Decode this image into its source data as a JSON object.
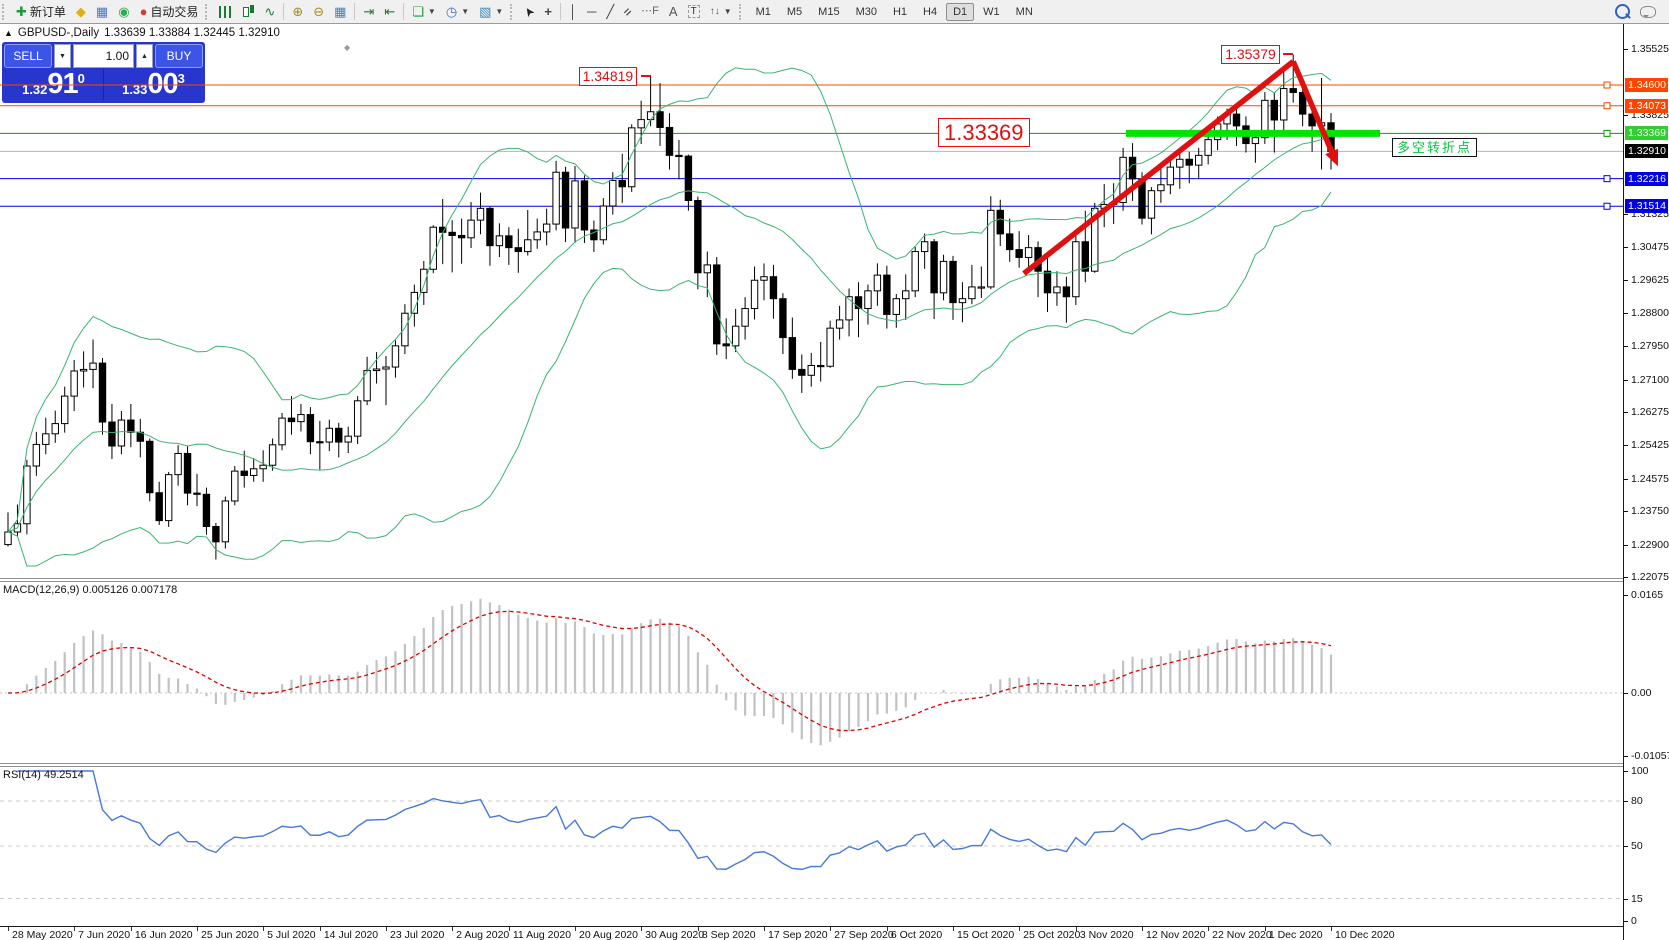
{
  "toolbar": {
    "new_order": "新订单",
    "autotrading": "自动交易",
    "timeframes": [
      "M1",
      "M5",
      "M15",
      "M30",
      "H1",
      "H4",
      "D1",
      "W1",
      "MN"
    ],
    "active_timeframe": "D1"
  },
  "window": {
    "title_symbol": "GBPUSD-,Daily",
    "title_ohlc": "1.33639 1.33884 1.32445 1.32910"
  },
  "trade_panel": {
    "sell_label": "SELL",
    "buy_label": "BUY",
    "volume": "1.00",
    "bid": {
      "prefix": "1.32",
      "big": "91",
      "sup": "0"
    },
    "ask": {
      "prefix": "1.33",
      "big": "00",
      "sup": "3"
    }
  },
  "price_axis": {
    "ticks": [
      "1.35525",
      "1.33825",
      "1.31325",
      "1.30475",
      "1.29625",
      "1.28800",
      "1.27950",
      "1.27100",
      "1.26275",
      "1.25425",
      "1.24575",
      "1.23750",
      "1.22900",
      "1.22075"
    ]
  },
  "levels": [
    {
      "text": "1.34600",
      "value": 1.346,
      "line": "#ff4500",
      "tag_bg": "#ff4500",
      "tag_fg": "#ffffff",
      "marker": true
    },
    {
      "text": "1.34073",
      "value": 1.34073,
      "line": "#ff4500",
      "tag_bg": "#ff4500",
      "tag_fg": "#ffffff",
      "marker": true
    },
    {
      "text": "1.33369",
      "value": 1.33369,
      "line": "#00a000",
      "tag_bg": "#33cc33",
      "tag_fg": "#ffffff",
      "marker": true
    },
    {
      "text": "1.32910",
      "value": 1.3291,
      "line": "#b4b4b4",
      "tag_bg": "#000000",
      "tag_fg": "#ffffff",
      "marker": false
    },
    {
      "text": "1.32216",
      "value": 1.32216,
      "line": "#0000e0",
      "tag_bg": "#0000e0",
      "tag_fg": "#ffffff",
      "marker": true
    },
    {
      "text": "1.31514",
      "value": 1.31514,
      "line": "#0000e0",
      "tag_bg": "#0000e0",
      "tag_fg": "#ffffff",
      "marker": true
    }
  ],
  "annotations": {
    "swing_high_1": {
      "text": "1.34819",
      "bar": 68,
      "price": 1.34819
    },
    "swing_high_2": {
      "text": "1.35379",
      "bar": 136,
      "price": 1.35379
    },
    "key_level_label": {
      "text": "1.33369",
      "price": 1.33369
    },
    "note": {
      "text": "多空转折点",
      "color": "#00c840"
    }
  },
  "macd_panel": {
    "label": "MACD(12,26,9) 0.005126 0.007178",
    "ticks": [
      {
        "label": "0.0165",
        "v": 0.0165
      },
      {
        "label": "0.00",
        "v": 0
      },
      {
        "label": "-0.010571",
        "v": -0.010571
      }
    ]
  },
  "rsi_panel": {
    "label": "RSI(14) 49.2514",
    "ticks": [
      {
        "label": "100",
        "v": 100,
        "dash": false
      },
      {
        "label": "80",
        "v": 80,
        "dash": true
      },
      {
        "label": "50",
        "v": 50,
        "dash": true
      },
      {
        "label": "15",
        "v": 15,
        "dash": true
      },
      {
        "label": "0",
        "v": 0,
        "dash": false
      }
    ]
  },
  "date_axis": [
    {
      "label": "28 May 2020",
      "bar": 0
    },
    {
      "label": "7 Jun 2020",
      "bar": 7
    },
    {
      "label": "16 Jun 2020",
      "bar": 13
    },
    {
      "label": "25 Jun 2020",
      "bar": 20
    },
    {
      "label": "5 Jul 2020",
      "bar": 27
    },
    {
      "label": "14 Jul 2020",
      "bar": 33
    },
    {
      "label": "23 Jul 2020",
      "bar": 40
    },
    {
      "label": "2 Aug 2020",
      "bar": 47
    },
    {
      "label": "11 Aug 2020",
      "bar": 53
    },
    {
      "label": "20 Aug 2020",
      "bar": 60
    },
    {
      "label": "30 Aug 2020",
      "bar": 67
    },
    {
      "label": "8 Sep 2020",
      "bar": 73
    },
    {
      "label": "17 Sep 2020",
      "bar": 80
    },
    {
      "label": "27 Sep 2020",
      "bar": 87
    },
    {
      "label": "6 Oct 2020",
      "bar": 93
    },
    {
      "label": "15 Oct 2020",
      "bar": 100
    },
    {
      "label": "25 Oct 2020",
      "bar": 107
    },
    {
      "label": "3 Nov 2020",
      "bar": 113
    },
    {
      "label": "12 Nov 2020",
      "bar": 120
    },
    {
      "label": "22 Nov 2020",
      "bar": 127
    },
    {
      "label": "1 Dec 2020",
      "bar": 133
    },
    {
      "label": "10 Dec 2020",
      "bar": 140
    }
  ],
  "chart_data": {
    "type": "candlestick",
    "symbol": "GBPUSD-",
    "timeframe": "Daily",
    "start_date": "2020-05-28",
    "end_date": "2020-12-10",
    "title": "GBPUSD-,Daily 1.33639 1.33884 1.32445 1.32910",
    "indicators": [
      "Bollinger Bands(20,2)",
      "MACD(12,26,9)",
      "RSI(14)"
    ],
    "ylim": [
      1.2205,
      1.361
    ],
    "candles": [
      [
        1.229,
        1.2372,
        1.2285,
        1.2322
      ],
      [
        1.2322,
        1.2392,
        1.231,
        1.2343
      ],
      [
        1.2343,
        1.2506,
        1.2316,
        1.249
      ],
      [
        1.249,
        1.2577,
        1.2465,
        1.2545
      ],
      [
        1.2545,
        1.2613,
        1.252,
        1.2572
      ],
      [
        1.2572,
        1.2631,
        1.2549,
        1.2598
      ],
      [
        1.2598,
        1.2692,
        1.2575,
        1.2668
      ],
      [
        1.2668,
        1.276,
        1.263,
        1.2732
      ],
      [
        1.2732,
        1.2782,
        1.269,
        1.2736
      ],
      [
        1.2736,
        1.2812,
        1.2688,
        1.2752
      ],
      [
        1.2752,
        1.2765,
        1.257,
        1.2602
      ],
      [
        1.2602,
        1.2648,
        1.2508,
        1.2541
      ],
      [
        1.2541,
        1.263,
        1.252,
        1.2607
      ],
      [
        1.2607,
        1.2648,
        1.2538,
        1.2576
      ],
      [
        1.2576,
        1.261,
        1.2512,
        1.2553
      ],
      [
        1.2553,
        1.256,
        1.24,
        1.2422
      ],
      [
        1.2422,
        1.245,
        1.234,
        1.2351
      ],
      [
        1.2351,
        1.2475,
        1.2335,
        1.2468
      ],
      [
        1.2468,
        1.2543,
        1.244,
        1.2522
      ],
      [
        1.2522,
        1.254,
        1.239,
        1.2421
      ],
      [
        1.2421,
        1.247,
        1.2388,
        1.2418
      ],
      [
        1.2418,
        1.2435,
        1.2315,
        1.2336
      ],
      [
        1.2336,
        1.2345,
        1.2252,
        1.2297
      ],
      [
        1.2297,
        1.2412,
        1.228,
        1.2401
      ],
      [
        1.2401,
        1.249,
        1.239,
        1.2477
      ],
      [
        1.2477,
        1.2529,
        1.2435,
        1.2466
      ],
      [
        1.2466,
        1.251,
        1.245,
        1.2483
      ],
      [
        1.2483,
        1.253,
        1.245,
        1.2492
      ],
      [
        1.2492,
        1.256,
        1.2478,
        1.2544
      ],
      [
        1.2544,
        1.2625,
        1.253,
        1.2612
      ],
      [
        1.2612,
        1.2668,
        1.257,
        1.2603
      ],
      [
        1.2603,
        1.2648,
        1.2578,
        1.2621
      ],
      [
        1.2621,
        1.264,
        1.252,
        1.2552
      ],
      [
        1.2552,
        1.2605,
        1.248,
        1.2551
      ],
      [
        1.2551,
        1.2608,
        1.2528,
        1.2586
      ],
      [
        1.2586,
        1.26,
        1.2512,
        1.2551
      ],
      [
        1.2551,
        1.259,
        1.2523,
        1.2566
      ],
      [
        1.2566,
        1.2668,
        1.2546,
        1.2656
      ],
      [
        1.2656,
        1.2768,
        1.2645,
        1.2733
      ],
      [
        1.2733,
        1.278,
        1.27,
        1.2737
      ],
      [
        1.2737,
        1.277,
        1.2645,
        1.2742
      ],
      [
        1.2742,
        1.281,
        1.2715,
        1.2796
      ],
      [
        1.2796,
        1.2902,
        1.2775,
        1.2879
      ],
      [
        1.2879,
        1.2952,
        1.2845,
        1.2932
      ],
      [
        1.2932,
        1.3012,
        1.29,
        1.2991
      ],
      [
        1.2991,
        1.3103,
        1.2981,
        1.3098
      ],
      [
        1.3098,
        1.317,
        1.3004,
        1.3085
      ],
      [
        1.3085,
        1.3116,
        1.2983,
        1.3077
      ],
      [
        1.3077,
        1.312,
        1.3005,
        1.3071
      ],
      [
        1.3071,
        1.3162,
        1.3045,
        1.3116
      ],
      [
        1.3116,
        1.3186,
        1.308,
        1.3146
      ],
      [
        1.3146,
        1.315,
        1.3,
        1.3051
      ],
      [
        1.3051,
        1.3108,
        1.3022,
        1.3076
      ],
      [
        1.3076,
        1.3098,
        1.3002,
        1.3046
      ],
      [
        1.3046,
        1.3094,
        1.2982,
        1.3036
      ],
      [
        1.3036,
        1.3142,
        1.3026,
        1.3066
      ],
      [
        1.3066,
        1.312,
        1.3043,
        1.3086
      ],
      [
        1.3086,
        1.3145,
        1.3052,
        1.3106
      ],
      [
        1.3106,
        1.3267,
        1.309,
        1.3238
      ],
      [
        1.3238,
        1.3252,
        1.306,
        1.3096
      ],
      [
        1.3096,
        1.3254,
        1.3058,
        1.3216
      ],
      [
        1.3216,
        1.323,
        1.3058,
        1.3091
      ],
      [
        1.3091,
        1.3115,
        1.3035,
        1.3066
      ],
      [
        1.3066,
        1.3172,
        1.3054,
        1.3152
      ],
      [
        1.3152,
        1.3238,
        1.313,
        1.3217
      ],
      [
        1.3217,
        1.3285,
        1.316,
        1.3201
      ],
      [
        1.3201,
        1.336,
        1.3188,
        1.3351
      ],
      [
        1.3351,
        1.342,
        1.331,
        1.3372
      ],
      [
        1.3372,
        1.34819,
        1.3355,
        1.3392
      ],
      [
        1.3392,
        1.3465,
        1.3305,
        1.3352
      ],
      [
        1.3352,
        1.3388,
        1.3245,
        1.3281
      ],
      [
        1.3281,
        1.332,
        1.322,
        1.3279
      ],
      [
        1.3279,
        1.3283,
        1.314,
        1.3166
      ],
      [
        1.3166,
        1.3176,
        1.294,
        1.2982
      ],
      [
        1.2982,
        1.3036,
        1.292,
        1.3002
      ],
      [
        1.3002,
        1.3022,
        1.2773,
        1.2801
      ],
      [
        1.2801,
        1.2866,
        1.2762,
        1.2796
      ],
      [
        1.2796,
        1.289,
        1.278,
        1.2846
      ],
      [
        1.2846,
        1.292,
        1.2812,
        1.2891
      ],
      [
        1.2891,
        1.2998,
        1.2863,
        1.2963
      ],
      [
        1.2963,
        1.3006,
        1.2912,
        1.2972
      ],
      [
        1.2972,
        1.3002,
        1.2865,
        1.2916
      ],
      [
        1.2916,
        1.293,
        1.2775,
        1.2817
      ],
      [
        1.2817,
        1.2868,
        1.2712,
        1.2736
      ],
      [
        1.2736,
        1.2774,
        1.2676,
        1.2721
      ],
      [
        1.2721,
        1.2778,
        1.2692,
        1.2746
      ],
      [
        1.2746,
        1.2806,
        1.2705,
        1.2744
      ],
      [
        1.2744,
        1.286,
        1.274,
        1.2841
      ],
      [
        1.2841,
        1.2898,
        1.2812,
        1.2862
      ],
      [
        1.2862,
        1.2942,
        1.282,
        1.2921
      ],
      [
        1.2921,
        1.2958,
        1.2818,
        1.2891
      ],
      [
        1.2891,
        1.2952,
        1.285,
        1.2936
      ],
      [
        1.2936,
        1.3006,
        1.2898,
        1.2976
      ],
      [
        1.2976,
        1.3,
        1.284,
        1.2876
      ],
      [
        1.2876,
        1.2928,
        1.2842,
        1.2916
      ],
      [
        1.2916,
        1.2978,
        1.2862,
        1.2936
      ],
      [
        1.2936,
        1.3048,
        1.292,
        1.3036
      ],
      [
        1.3036,
        1.3082,
        1.2992,
        1.3061
      ],
      [
        1.3061,
        1.3068,
        1.2864,
        1.2931
      ],
      [
        1.2931,
        1.3028,
        1.2912,
        1.3011
      ],
      [
        1.3011,
        1.3025,
        1.2862,
        1.2906
      ],
      [
        1.2906,
        1.2958,
        1.2856,
        1.2916
      ],
      [
        1.2916,
        1.3002,
        1.2902,
        1.2946
      ],
      [
        1.2946,
        1.2998,
        1.2918,
        1.2946
      ],
      [
        1.2946,
        1.3177,
        1.294,
        1.3141
      ],
      [
        1.3141,
        1.3168,
        1.305,
        1.3081
      ],
      [
        1.3081,
        1.312,
        1.301,
        1.3041
      ],
      [
        1.3041,
        1.3088,
        1.2995,
        1.3021
      ],
      [
        1.3021,
        1.3078,
        1.299,
        1.3046
      ],
      [
        1.3046,
        1.3062,
        1.292,
        1.2986
      ],
      [
        1.2986,
        1.3022,
        1.2882,
        1.2931
      ],
      [
        1.2931,
        1.2986,
        1.2898,
        1.2946
      ],
      [
        1.2946,
        1.2972,
        1.2855,
        1.2921
      ],
      [
        1.2921,
        1.3082,
        1.29,
        1.3061
      ],
      [
        1.3061,
        1.314,
        1.2958,
        1.2986
      ],
      [
        1.2986,
        1.316,
        1.2982,
        1.3146
      ],
      [
        1.3146,
        1.3208,
        1.3098,
        1.3156
      ],
      [
        1.3156,
        1.321,
        1.3106,
        1.3161
      ],
      [
        1.3161,
        1.33,
        1.314,
        1.3276
      ],
      [
        1.3276,
        1.3312,
        1.3165,
        1.3221
      ],
      [
        1.3221,
        1.3238,
        1.3105,
        1.3121
      ],
      [
        1.3121,
        1.32,
        1.308,
        1.3191
      ],
      [
        1.3191,
        1.325,
        1.316,
        1.3206
      ],
      [
        1.3206,
        1.3268,
        1.3182,
        1.3251
      ],
      [
        1.3251,
        1.3298,
        1.3196,
        1.3271
      ],
      [
        1.3271,
        1.329,
        1.321,
        1.3256
      ],
      [
        1.3256,
        1.33,
        1.322,
        1.3281
      ],
      [
        1.3281,
        1.3338,
        1.3258,
        1.3321
      ],
      [
        1.3321,
        1.338,
        1.3294,
        1.3361
      ],
      [
        1.3361,
        1.34,
        1.332,
        1.3386
      ],
      [
        1.3386,
        1.34,
        1.3305,
        1.3356
      ],
      [
        1.3356,
        1.338,
        1.3288,
        1.3311
      ],
      [
        1.3311,
        1.3342,
        1.3262,
        1.3326
      ],
      [
        1.3326,
        1.3442,
        1.331,
        1.3421
      ],
      [
        1.3421,
        1.3442,
        1.3288,
        1.3371
      ],
      [
        1.3371,
        1.35,
        1.334,
        1.3451
      ],
      [
        1.3451,
        1.35379,
        1.3415,
        1.3441
      ],
      [
        1.3441,
        1.3478,
        1.3355,
        1.3386
      ],
      [
        1.3386,
        1.3394,
        1.329,
        1.3356
      ],
      [
        1.3356,
        1.3478,
        1.3245,
        1.3364
      ],
      [
        1.33639,
        1.33884,
        1.32445,
        1.3291
      ]
    ],
    "trend_lines": [
      {
        "from": {
          "bar": 107.5,
          "price": 1.298
        },
        "to": {
          "bar": 136,
          "price": 1.352
        },
        "color": "#e01010",
        "arrow": false
      },
      {
        "from": {
          "bar": 136,
          "price": 1.352
        },
        "to": {
          "bar": 140.4,
          "price": 1.3272
        },
        "color": "#e01010",
        "arrow": true
      }
    ],
    "highlight_line": {
      "price": 1.33369,
      "from_bar": 118.3,
      "to_x": 1380,
      "color": "#00e400"
    }
  }
}
